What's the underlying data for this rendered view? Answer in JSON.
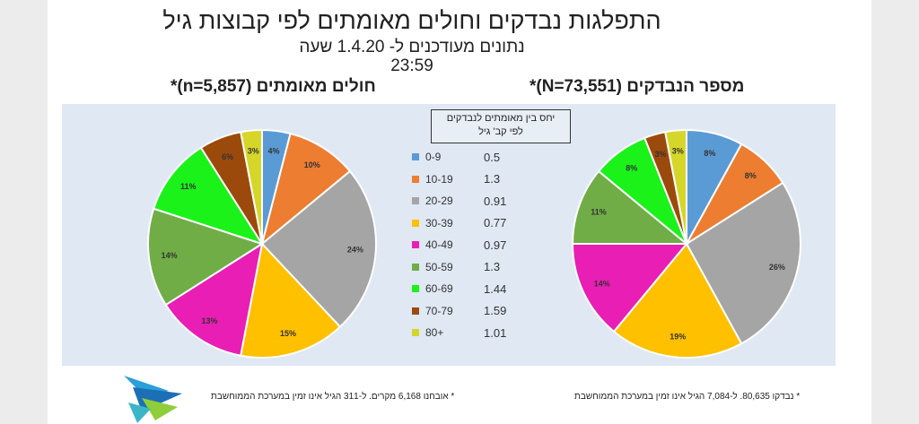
{
  "title": "התפלגות נבדקים וחולים מאומתים לפי קבוצות גיל",
  "subtitle_line1": "נתונים מעודכנים ל- 1.4.20 שעה",
  "subtitle_line2": "23:59",
  "legend_header_line1": "יחס בין מאומתים לנבדקים",
  "legend_header_line2": "לפי קב' גיל",
  "footnote_left": "* אובחנו 6,168 מקרים. ל-311 הגיל אינו זמין במערכת הממוחשבת",
  "footnote_right": "* נבדקו 80,635. ל-7,084 הגיל אינו זמין במערכת הממוחשבת",
  "legend": [
    {
      "label": "0-9",
      "ratio": "0.5",
      "color": "#5b9bd5"
    },
    {
      "label": "10-19",
      "ratio": "1.3",
      "color": "#ed7d31"
    },
    {
      "label": "20-29",
      "ratio": "0.91",
      "color": "#a5a5a5"
    },
    {
      "label": "30-39",
      "ratio": "0.77",
      "color": "#ffc000"
    },
    {
      "label": "40-49",
      "ratio": "0.97",
      "color": "#e91eb4"
    },
    {
      "label": "50-59",
      "ratio": "1.3",
      "color": "#70ad47"
    },
    {
      "label": "60-69",
      "ratio": "1.44",
      "color": "#1af21a"
    },
    {
      "label": "70-79",
      "ratio": "1.59",
      "color": "#9c4a0c"
    },
    {
      "label": "80+",
      "ratio": "1.01",
      "color": "#d6d62a"
    }
  ],
  "chart_data": [
    {
      "type": "pie",
      "title": "חולים מאומתים (n=5,857)*",
      "categories": [
        "0-9",
        "10-19",
        "20-29",
        "30-39",
        "40-49",
        "50-59",
        "60-69",
        "70-79",
        "80+"
      ],
      "values": [
        4,
        10,
        24,
        15,
        13,
        14,
        11,
        6,
        3
      ],
      "labels": [
        "4%",
        "10%",
        "24%",
        "15%",
        "13%",
        "14%",
        "11%",
        "6%",
        "3%"
      ],
      "colors": [
        "#5b9bd5",
        "#ed7d31",
        "#a5a5a5",
        "#ffc000",
        "#e91eb4",
        "#70ad47",
        "#1af21a",
        "#9c4a0c",
        "#d6d62a"
      ]
    },
    {
      "type": "pie",
      "title": "מספר הנבדקים (N=73,551)*",
      "categories": [
        "0-9",
        "10-19",
        "20-29",
        "30-39",
        "40-49",
        "50-59",
        "60-69",
        "70-79",
        "80+"
      ],
      "values": [
        8,
        8,
        26,
        19,
        14,
        11,
        8,
        3,
        3
      ],
      "labels": [
        "8%",
        "8%",
        "26%",
        "19%",
        "14%",
        "11%",
        "8%",
        "3%",
        "3%"
      ],
      "colors": [
        "#5b9bd5",
        "#ed7d31",
        "#a5a5a5",
        "#ffc000",
        "#e91eb4",
        "#70ad47",
        "#1af21a",
        "#9c4a0c",
        "#d6d62a"
      ]
    }
  ]
}
